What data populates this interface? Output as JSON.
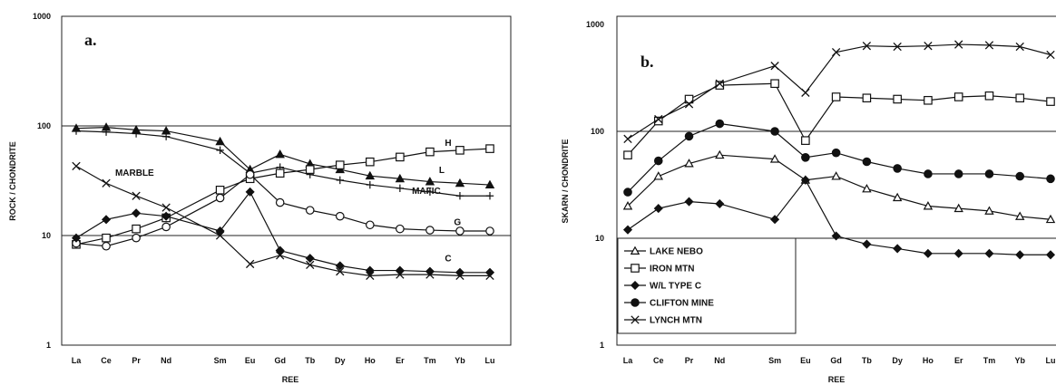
{
  "chart_data": [
    {
      "type": "line",
      "panel_label": "a.",
      "xlabel": "REE",
      "ylabel": "ROCK / CHONDRITE",
      "yscale": "log",
      "ylim": [
        1,
        1000
      ],
      "yticks": [
        "1",
        "10",
        "100",
        "1000"
      ],
      "grid": "horizontal at 10 and 100",
      "x_positions": [
        0,
        1,
        2,
        3,
        4.8,
        5.8,
        6.8,
        7.8,
        8.8,
        9.8,
        10.8,
        11.8,
        12.8,
        13.8
      ],
      "categories": [
        "La",
        "Ce",
        "Pr",
        "Nd",
        "Sm",
        "Eu",
        "Gd",
        "Tb",
        "Dy",
        "Ho",
        "Er",
        "Tm",
        "Yb",
        "Lu"
      ],
      "series": [
        {
          "marker": "triangle-filled",
          "values": [
            95,
            97,
            92,
            90,
            72,
            40,
            55,
            45,
            40,
            35,
            33,
            31,
            30,
            29
          ]
        },
        {
          "marker": "plus",
          "values": [
            90,
            88,
            85,
            80,
            60,
            37,
            42,
            36,
            32,
            29,
            27,
            25,
            23,
            23
          ]
        },
        {
          "marker": "square-open",
          "values": [
            8.3,
            9.5,
            11.5,
            14.5,
            26,
            33,
            37,
            40,
            44,
            47,
            52,
            58,
            60,
            62
          ]
        },
        {
          "marker": "circle-open",
          "values": [
            8.5,
            8,
            9.5,
            12,
            22,
            36,
            20,
            17,
            15,
            12.5,
            11.5,
            11.2,
            11,
            11
          ]
        },
        {
          "marker": "diamond-filled",
          "values": [
            9.5,
            14,
            16,
            15,
            11,
            25,
            7.3,
            6.2,
            5.3,
            4.8,
            4.8,
            4.7,
            4.6,
            4.6
          ]
        },
        {
          "marker": "x",
          "values": [
            43,
            30,
            23,
            18,
            10,
            5.5,
            6.6,
            5.4,
            4.7,
            4.3,
            4.4,
            4.4,
            4.3,
            4.3
          ]
        }
      ],
      "annotations": [
        {
          "text": "MARBLE",
          "x": 1.3,
          "y": 35
        },
        {
          "text": "H",
          "x": 12.3,
          "y": 66
        },
        {
          "text": "L",
          "x": 12.1,
          "y": 37
        },
        {
          "text": "MAFIC",
          "x": 11.2,
          "y": 24
        },
        {
          "text": "G",
          "x": 12.6,
          "y": 12.5
        },
        {
          "text": "C",
          "x": 12.3,
          "y": 5.8
        }
      ]
    },
    {
      "type": "line",
      "panel_label": "b.",
      "xlabel": "REE",
      "ylabel": "SKARN / CHONDRITE",
      "yscale": "log",
      "ylim": [
        1,
        1000
      ],
      "yticks": [
        "1",
        "10",
        "100",
        "1000"
      ],
      "grid": "horizontal at 10 and 100",
      "x_positions": [
        0,
        1,
        2,
        3,
        4.8,
        5.8,
        6.8,
        7.8,
        8.8,
        9.8,
        10.8,
        11.8,
        12.8,
        13.8
      ],
      "categories": [
        "La",
        "Ce",
        "Pr",
        "Nd",
        "Sm",
        "Eu",
        "Gd",
        "Tb",
        "Dy",
        "Ho",
        "Er",
        "Tm",
        "Yb",
        "Lu"
      ],
      "series": [
        {
          "name": "LAKE NEBO",
          "marker": "triangle-open",
          "values": [
            20,
            38,
            50,
            60,
            55,
            35,
            38,
            29,
            24,
            20,
            19,
            18,
            16,
            15
          ]
        },
        {
          "name": "IRON MTN",
          "marker": "square-open",
          "values": [
            60,
            125,
            200,
            270,
            280,
            82,
            210,
            205,
            200,
            195,
            210,
            215,
            205,
            190
          ]
        },
        {
          "name": "W/L TYPE C",
          "marker": "diamond-filled",
          "values": [
            12,
            19,
            22,
            21,
            15,
            35,
            10.5,
            8.8,
            8,
            7.2,
            7.2,
            7.2,
            7,
            7
          ]
        },
        {
          "name": "CLIFTON MINE",
          "marker": "circle-filled",
          "values": [
            27,
            53,
            90,
            118,
            100,
            57,
            63,
            52,
            45,
            40,
            40,
            40,
            38,
            36
          ]
        },
        {
          "name": "LYNCH MTN",
          "marker": "x",
          "values": [
            85,
            130,
            180,
            280,
            410,
            230,
            550,
            630,
            620,
            630,
            650,
            640,
            620,
            520
          ]
        }
      ]
    }
  ]
}
